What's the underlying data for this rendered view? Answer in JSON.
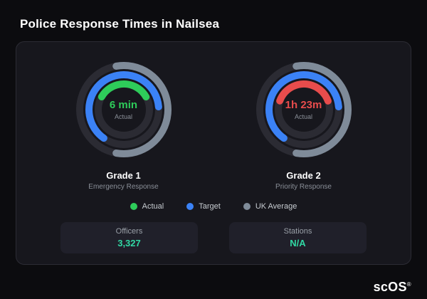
{
  "title": "Police Response Times in Nailsea",
  "colors": {
    "actual_green": "#2ecc5a",
    "target_blue": "#3b82f6",
    "uk_average_gray": "#7f8b99",
    "actual_red": "#e74c4c",
    "stat_value_teal": "#31d8a4",
    "ring_track": "#2b2b33"
  },
  "chart_data": [
    {
      "type": "gauge",
      "title": "Grade 1",
      "subtitle": "Emergency Response",
      "center_value": "6 min",
      "center_label": "Actual",
      "center_color": "#2ecc5a",
      "rings": [
        {
          "name": "UK Average",
          "color": "#7f8b99",
          "start_deg": -10,
          "sweep_deg": 200
        },
        {
          "name": "Target",
          "color": "#3b82f6",
          "start_deg": 215,
          "sweep_deg": 230
        },
        {
          "name": "Actual",
          "color": "#2ecc5a",
          "start_deg": 300,
          "sweep_deg": 120
        }
      ]
    },
    {
      "type": "gauge",
      "title": "Grade 2",
      "subtitle": "Priority Response",
      "center_value": "1h 23m",
      "center_label": "Actual",
      "center_color": "#e74c4c",
      "rings": [
        {
          "name": "UK Average",
          "color": "#7f8b99",
          "start_deg": -10,
          "sweep_deg": 200
        },
        {
          "name": "Target",
          "color": "#3b82f6",
          "start_deg": 215,
          "sweep_deg": 230
        },
        {
          "name": "Actual",
          "color": "#e74c4c",
          "start_deg": 290,
          "sweep_deg": 140
        }
      ]
    }
  ],
  "legend": {
    "items": [
      {
        "label": "Actual",
        "color": "#2ecc5a"
      },
      {
        "label": "Target",
        "color": "#3b82f6"
      },
      {
        "label": "UK Average",
        "color": "#7f8b99"
      }
    ]
  },
  "stats": [
    {
      "label": "Officers",
      "value": "3,327"
    },
    {
      "label": "Stations",
      "value": "N/A"
    }
  ],
  "footer": {
    "logo": "scOS",
    "reg": "®"
  }
}
